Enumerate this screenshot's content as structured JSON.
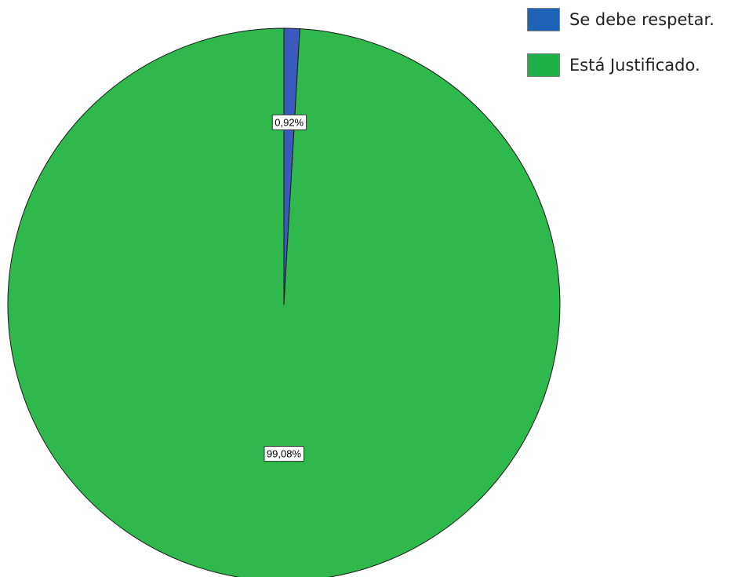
{
  "chart_data": {
    "type": "pie",
    "categories": [
      "Se debe respetar.",
      "Está Justificado."
    ],
    "values": [
      0.92,
      99.08
    ],
    "value_labels": [
      "0,92%",
      "99,08%"
    ],
    "colors": [
      "#3a5bbd",
      "#2fb84c"
    ],
    "legend_colors": [
      "#1f63b8",
      "#1fb04a"
    ],
    "title": "",
    "legend_position": "top-right",
    "start_angle": "12 o'clock",
    "direction": "clockwise"
  }
}
